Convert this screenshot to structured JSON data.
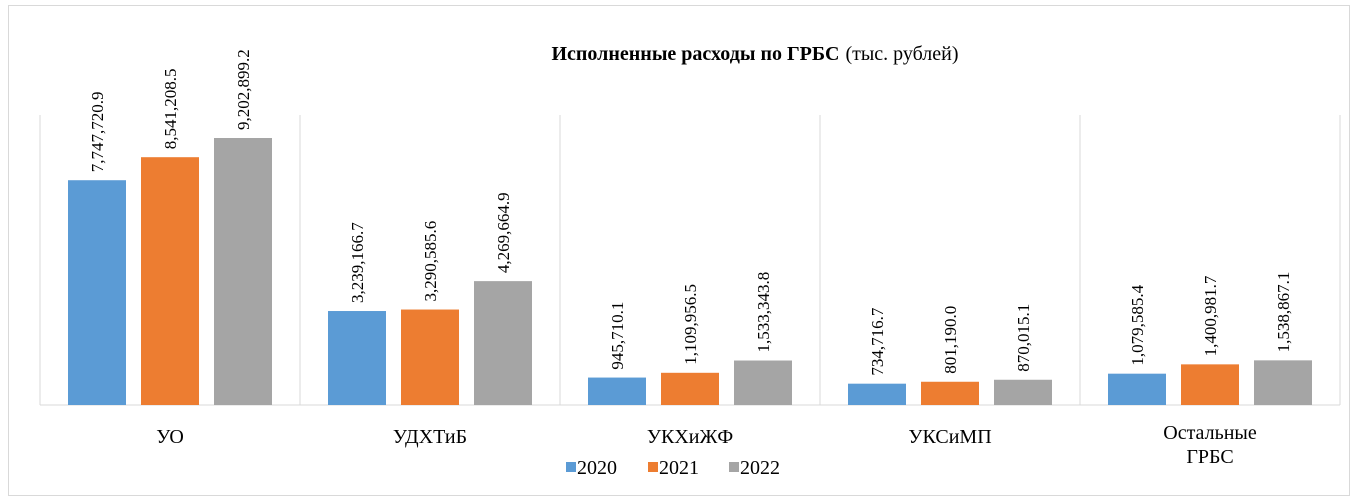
{
  "chart_data": {
    "type": "bar",
    "title": "Исполненные расходы по ГРБС",
    "subtitle": "(тыс. рублей)",
    "categories": [
      "УО",
      "УДХТиБ",
      "УКХиЖФ",
      "УКСиМП",
      "Остальные ГРБС"
    ],
    "series": [
      {
        "name": "2020",
        "color": "#5b9bd5",
        "values": [
          7747720.9,
          3239166.7,
          945710.1,
          734716.7,
          1079585.4
        ],
        "value_labels": [
          "7,747,720.9",
          "3,239,166.7",
          "945,710.1",
          "734,716.7",
          "1,079,585.4"
        ]
      },
      {
        "name": "2021",
        "color": "#ed7d31",
        "values": [
          8541208.5,
          3290585.6,
          1109956.5,
          801190.0,
          1400981.7
        ],
        "value_labels": [
          "8,541,208.5",
          "3,290,585.6",
          "1,109,956.5",
          "801,190.0",
          "1,400,981.7"
        ]
      },
      {
        "name": "2022",
        "color": "#a5a5a5",
        "values": [
          9202899.2,
          4269664.9,
          1533343.8,
          870015.1,
          1538867.1
        ],
        "value_labels": [
          "9,202,899.2",
          "4,269,664.9",
          "1,533,343.8",
          "870,015.1",
          "1,538,867.1"
        ]
      }
    ],
    "legend": "bottom"
  }
}
